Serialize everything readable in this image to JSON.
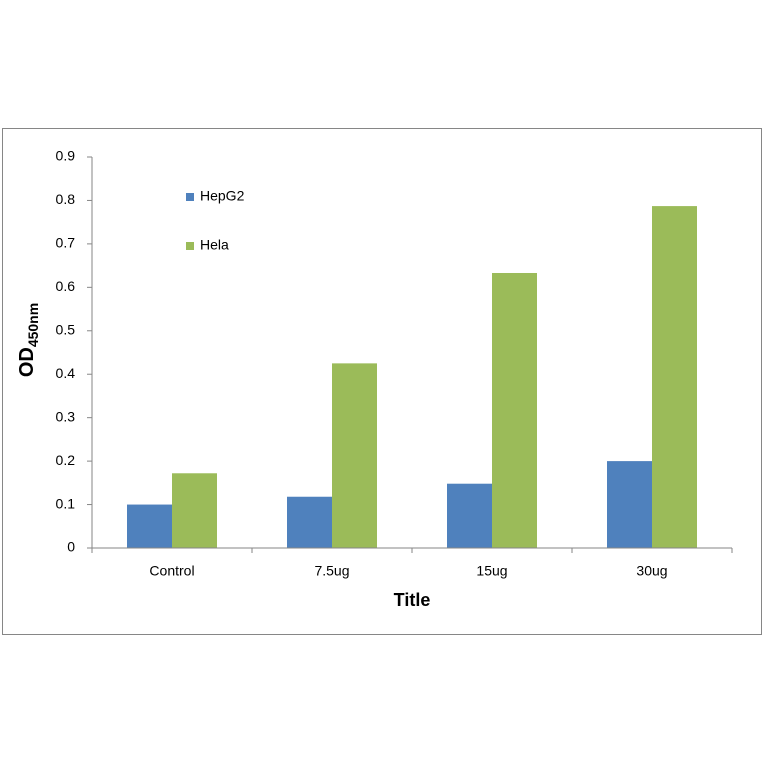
{
  "chart_data": {
    "type": "bar",
    "xlabel": "Title",
    "ylabel": {
      "text": "OD",
      "subscript": "450nm"
    },
    "categories": [
      "Control",
      "7.5ug",
      "15ug",
      "30ug"
    ],
    "series": [
      {
        "name": "HepG2",
        "color": "#4f81bd",
        "values": [
          0.1,
          0.118,
          0.148,
          0.2
        ]
      },
      {
        "name": "Hela",
        "color": "#9bbb59",
        "values": [
          0.172,
          0.425,
          0.633,
          0.787
        ]
      }
    ],
    "ylim": [
      0,
      0.9
    ],
    "yticks": [
      0,
      0.1,
      0.2,
      0.3,
      0.4,
      0.5,
      0.6,
      0.7,
      0.8,
      0.9
    ],
    "grid": false,
    "legend": "top-left"
  }
}
